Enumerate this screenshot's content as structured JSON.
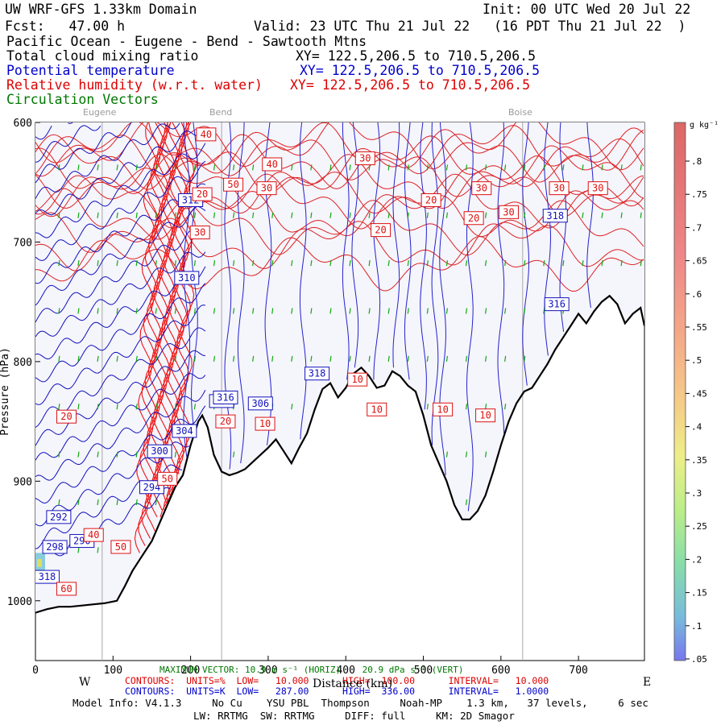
{
  "header": {
    "title": "UW WRF-GFS 1.33km Domain",
    "init": "Init: 00 UTC Wed 20 Jul 22",
    "fcst": "Fcst:   47.00 h",
    "valid": "Valid: 23 UTC Thu 21 Jul 22   (16 PDT Thu 21 Jul 22  )",
    "route": "Pacific Ocean - Eugene - Bend - Sawtooth Mtns",
    "fields": [
      {
        "name": "Total cloud mixing ratio",
        "xy": "XY= 122.5,206.5 to 710.5,206.5",
        "color": "#000000"
      },
      {
        "name": "Potential temperature",
        "xy": "XY= 122.5,206.5 to 710.5,206.5",
        "color": "#0000cc"
      },
      {
        "name": "Relative humidity (w.r.t. water)",
        "xy": "XY= 122.5,206.5 to 710.5,206.5",
        "color": "#dd0000"
      },
      {
        "name": "Circulation Vectors",
        "xy": "",
        "color": "#007700"
      }
    ]
  },
  "locations": [
    "Eugene",
    "Bend",
    "Boise"
  ],
  "chart_data": {
    "type": "cross-section",
    "xlabel": "Distance (km)",
    "ylabel": "Pressure (hPa)",
    "xlim": [
      0,
      785
    ],
    "ylim": [
      1050,
      600
    ],
    "xticks": [
      0,
      100,
      200,
      300,
      400,
      500,
      600,
      700
    ],
    "yticks": [
      600,
      700,
      800,
      900,
      1000
    ],
    "ytick_labels": [
      "600",
      "700",
      "800",
      "900",
      "1000"
    ],
    "location_markers": [
      {
        "name": "Eugene",
        "x": 86
      },
      {
        "name": "Bend",
        "x": 240
      },
      {
        "name": "Boise",
        "x": 628
      }
    ],
    "terrain": {
      "x": [
        0,
        15,
        30,
        45,
        60,
        75,
        90,
        105,
        115,
        125,
        135,
        150,
        160,
        170,
        180,
        190,
        200,
        210,
        215,
        222,
        230,
        240,
        250,
        260,
        270,
        280,
        290,
        300,
        310,
        320,
        330,
        340,
        350,
        360,
        370,
        380,
        390,
        400,
        410,
        420,
        430,
        440,
        450,
        460,
        470,
        480,
        490,
        500,
        510,
        520,
        530,
        540,
        550,
        560,
        570,
        580,
        590,
        600,
        610,
        620,
        630,
        640,
        650,
        660,
        670,
        680,
        690,
        700,
        710,
        720,
        730,
        740,
        750,
        760,
        770,
        780,
        785
      ],
      "p": [
        1010,
        1007,
        1005,
        1005,
        1004,
        1003,
        1002,
        1000,
        988,
        975,
        965,
        950,
        935,
        920,
        905,
        895,
        870,
        850,
        845,
        855,
        878,
        892,
        895,
        893,
        890,
        884,
        878,
        872,
        865,
        875,
        885,
        872,
        860,
        840,
        823,
        818,
        830,
        822,
        810,
        805,
        812,
        822,
        820,
        808,
        812,
        820,
        825,
        845,
        870,
        885,
        900,
        920,
        932,
        932,
        925,
        912,
        892,
        870,
        850,
        835,
        825,
        822,
        812,
        802,
        790,
        780,
        770,
        760,
        768,
        758,
        750,
        745,
        752,
        768,
        760,
        755,
        770
      ]
    },
    "theta_labels_K": [
      "318",
      "312",
      "310",
      "316",
      "318",
      "314",
      "306",
      "304",
      "300",
      "294",
      "292",
      "298",
      "290",
      "318",
      "316"
    ],
    "rh_labels_pct": [
      "40",
      "40",
      "30",
      "20",
      "50",
      "30",
      "30",
      "30",
      "20",
      "30",
      "20",
      "20",
      "30",
      "30",
      "10",
      "10",
      "10",
      "10",
      "20",
      "20",
      "10",
      "60",
      "50",
      "40",
      "50"
    ],
    "maximum_vector": "MAXIMUM VECTOR: 10.9 m s⁻¹ (HORIZ)    20.9 dPa s⁻¹ (VERT)",
    "contours": [
      {
        "label": "CONTOURS:  UNITS=%  LOW=   10.000      HIGH=  100.00      INTERVAL=   10.000",
        "color": "#dd0000"
      },
      {
        "label": "CONTOURS:  UNITS=K  LOW=   287.00      HIGH=  336.00      INTERVAL=   1.0000",
        "color": "#0000cc"
      }
    ],
    "colorbar": {
      "unit": "g kg⁻¹",
      "labels": [
        ".8",
        ".75",
        ".7",
        ".65",
        ".6",
        ".55",
        ".5",
        ".45",
        ".4",
        ".35",
        ".3",
        ".25",
        ".2",
        ".15",
        ".1",
        ".05"
      ]
    }
  },
  "footer": {
    "west": "W",
    "east": "E",
    "model_info": "Model Info: V4.1.3     No Cu    YSU PBL  Thompson     Noah-MP    1.3 km,   37 levels,     6 sec",
    "model_info2": "LW: RRTMG  SW: RRTMG     DIFF: full     KM: 2D Smagor"
  }
}
